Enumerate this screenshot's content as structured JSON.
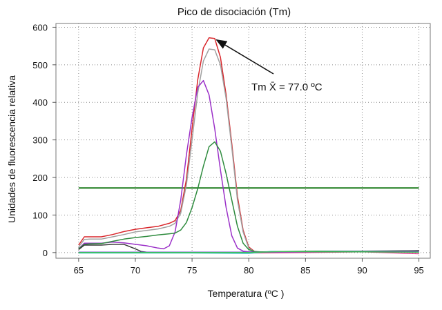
{
  "chart_data": {
    "type": "line",
    "title": "Pico de disociación  (Tm)",
    "xlabel": "Temperatura (ºC )",
    "ylabel": "Unidades de fluorescencia relativa",
    "xlim": [
      63,
      96
    ],
    "ylim": [
      -15,
      610
    ],
    "x_ticks": [
      65,
      70,
      75,
      80,
      85,
      90,
      95
    ],
    "y_ticks": [
      0,
      100,
      200,
      300,
      400,
      500,
      600
    ],
    "grid": "dotted",
    "annotation": {
      "text": "Tm X̄ = 77.0 ºC",
      "points_to": [
        76.8,
        570
      ]
    },
    "threshold": {
      "y": 172,
      "x_range": [
        65,
        95
      ],
      "color": "#1a7a1a"
    },
    "series": [
      {
        "color": "#d9262b",
        "x": [
          65,
          65.5,
          66,
          67,
          68,
          69,
          70,
          71,
          72,
          73,
          73.5,
          74,
          74.5,
          75,
          75.5,
          76,
          76.5,
          77,
          77.5,
          78,
          78.5,
          79,
          79.5,
          80,
          80.5,
          81,
          83,
          86,
          90,
          93,
          95
        ],
        "y": [
          20,
          42,
          42,
          42,
          48,
          56,
          62,
          66,
          70,
          78,
          85,
          112,
          195,
          330,
          460,
          545,
          572,
          570,
          520,
          420,
          290,
          150,
          60,
          15,
          3,
          1,
          2,
          3,
          3,
          4,
          5
        ]
      },
      {
        "color": "#a0a0a0",
        "x": [
          65,
          65.5,
          66,
          67,
          68,
          69,
          70,
          71,
          72,
          73,
          73.5,
          74,
          74.5,
          75,
          75.5,
          76,
          76.5,
          77,
          77.5,
          78,
          78.5,
          79,
          79.5,
          80,
          80.5,
          81,
          83,
          86,
          90,
          93,
          95
        ],
        "y": [
          15,
          35,
          36,
          36,
          42,
          48,
          55,
          59,
          63,
          70,
          78,
          105,
          180,
          300,
          425,
          510,
          542,
          540,
          500,
          410,
          280,
          140,
          55,
          12,
          2,
          1,
          2,
          2,
          3,
          3,
          4
        ]
      },
      {
        "color": "#9b30c8",
        "x": [
          65,
          65.5,
          66,
          67,
          68,
          69,
          70,
          71,
          72,
          72.5,
          73,
          73.5,
          74,
          74.5,
          75,
          75.5,
          76,
          76.5,
          77,
          77.5,
          78,
          78.5,
          79,
          79.5,
          80,
          82,
          86,
          90,
          95
        ],
        "y": [
          10,
          25,
          25,
          25,
          28,
          26,
          22,
          18,
          12,
          10,
          18,
          55,
          140,
          260,
          360,
          440,
          458,
          420,
          330,
          220,
          120,
          45,
          12,
          4,
          2,
          2,
          3,
          3,
          4
        ]
      },
      {
        "color": "#2e8b3e",
        "x": [
          65,
          65.5,
          66,
          67,
          68,
          69,
          70,
          71,
          72,
          73,
          73.5,
          74,
          74.5,
          75,
          75.5,
          76,
          76.5,
          77,
          77.5,
          78,
          78.5,
          79,
          79.5,
          80,
          80.5,
          81,
          83,
          86,
          90,
          95
        ],
        "y": [
          10,
          22,
          23,
          24,
          30,
          36,
          40,
          43,
          47,
          50,
          52,
          60,
          80,
          120,
          170,
          230,
          282,
          295,
          270,
          210,
          140,
          70,
          25,
          8,
          3,
          2,
          3,
          4,
          4,
          5
        ]
      },
      {
        "color": "#3a3a3a",
        "x": [
          65,
          65.5,
          66,
          67,
          68,
          69,
          70,
          70.5,
          71,
          72,
          73,
          74,
          75,
          76,
          77,
          78,
          79,
          80,
          82,
          86,
          90,
          95
        ],
        "y": [
          8,
          20,
          20,
          20,
          22,
          22,
          10,
          3,
          1,
          0,
          0,
          0,
          0,
          0,
          0,
          0,
          0,
          0,
          1,
          2,
          3,
          5
        ]
      },
      {
        "color": "#e03a8c",
        "x": [
          65,
          70,
          75,
          80,
          85,
          90,
          95
        ],
        "y": [
          0,
          0,
          0,
          -1,
          0,
          2,
          -3
        ]
      },
      {
        "color": "#23b5c8",
        "x": [
          65,
          70,
          75,
          80,
          82,
          85,
          90,
          95
        ],
        "y": [
          -1,
          -1,
          -1,
          -2,
          3,
          2,
          3,
          2
        ]
      },
      {
        "color": "#7f4ad1",
        "x": [
          65,
          70,
          75,
          80,
          85,
          90,
          95
        ],
        "y": [
          1,
          1,
          1,
          1,
          2,
          3,
          3
        ]
      },
      {
        "color": "#3fbf5a",
        "x": [
          65,
          70,
          75,
          80,
          83,
          87,
          90,
          95
        ],
        "y": [
          0,
          0,
          0,
          0,
          3,
          2,
          2,
          1
        ]
      }
    ]
  }
}
